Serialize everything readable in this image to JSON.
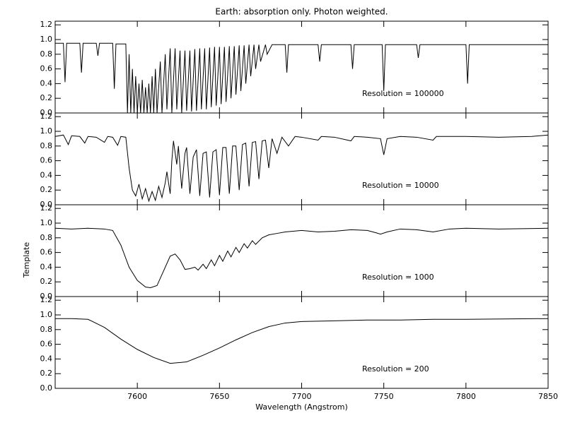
{
  "chart_data": [
    {
      "type": "line",
      "title": "Earth: absorption only. Photon weighted.",
      "annotation": "Resolution = 100000",
      "xlim": [
        7550,
        7850
      ],
      "ylim": [
        0,
        1.25
      ],
      "yticks": [
        {
          "value": 0,
          "label": "0.0"
        },
        0.2,
        0.4,
        0.6,
        0.8,
        {
          "value": 1,
          "label": "1.0"
        },
        1.2
      ],
      "series": [
        {
          "color": "#000000",
          "x": [
            7550,
            7555,
            7556,
            7557,
            7565,
            7566,
            7567,
            7575,
            7576,
            7577,
            7585,
            7586,
            7587,
            7593,
            7594,
            7595,
            7596,
            7597,
            7598,
            7599,
            7600,
            7601,
            7602,
            7603,
            7604,
            7605,
            7606,
            7607,
            7608,
            7609,
            7610,
            7611,
            7612,
            7614,
            7615,
            7617,
            7618,
            7620,
            7621,
            7623,
            7624,
            7626,
            7627,
            7629,
            7630,
            7632,
            7633,
            7635,
            7636,
            7638,
            7639,
            7641,
            7642,
            7644,
            7645,
            7647,
            7648,
            7650,
            7651,
            7653,
            7654,
            7656,
            7657,
            7659,
            7660,
            7662,
            7663,
            7665,
            7666,
            7668,
            7669,
            7671,
            7672,
            7674,
            7675,
            7678,
            7679,
            7682,
            7690,
            7691,
            7692,
            7710,
            7711,
            7712,
            7730,
            7731,
            7732,
            7749,
            7750,
            7751,
            7770,
            7771,
            7772,
            7800,
            7801,
            7802,
            7850
          ],
          "values": [
            0.95,
            0.95,
            0.42,
            0.95,
            0.95,
            0.55,
            0.95,
            0.95,
            0.78,
            0.95,
            0.95,
            0.33,
            0.94,
            0.94,
            0.0,
            0.8,
            0.0,
            0.6,
            0.0,
            0.5,
            0.0,
            0.4,
            0.0,
            0.45,
            0.0,
            0.35,
            0.0,
            0.4,
            0.0,
            0.5,
            0.0,
            0.6,
            0.0,
            0.7,
            0.0,
            0.8,
            0.05,
            0.88,
            0.0,
            0.88,
            0.05,
            0.85,
            0.0,
            0.85,
            0.03,
            0.85,
            0.02,
            0.87,
            0.03,
            0.88,
            0.05,
            0.88,
            0.05,
            0.89,
            0.08,
            0.9,
            0.1,
            0.9,
            0.12,
            0.9,
            0.15,
            0.91,
            0.2,
            0.91,
            0.25,
            0.92,
            0.3,
            0.92,
            0.4,
            0.93,
            0.5,
            0.93,
            0.6,
            0.93,
            0.7,
            0.93,
            0.8,
            0.93,
            0.93,
            0.55,
            0.93,
            0.93,
            0.7,
            0.93,
            0.93,
            0.6,
            0.93,
            0.93,
            0.3,
            0.93,
            0.93,
            0.75,
            0.93,
            0.93,
            0.4,
            0.93,
            0.93
          ]
        }
      ]
    },
    {
      "type": "line",
      "annotation": "Resolution = 10000",
      "xlim": [
        7550,
        7850
      ],
      "ylim": [
        0,
        1.25
      ],
      "yticks": [
        {
          "value": 0,
          "label": "0.0"
        },
        0.2,
        0.4,
        0.6,
        0.8,
        {
          "value": 1,
          "label": "1.0"
        },
        1.2
      ],
      "series": [
        {
          "color": "#000000",
          "x": [
            7550,
            7555,
            7558,
            7560,
            7565,
            7568,
            7570,
            7575,
            7580,
            7582,
            7585,
            7588,
            7590,
            7593,
            7595,
            7597,
            7599,
            7601,
            7603,
            7605,
            7607,
            7609,
            7611,
            7613,
            7615,
            7617,
            7618,
            7620,
            7621,
            7622,
            7624,
            7625,
            7627,
            7629,
            7630,
            7632,
            7634,
            7636,
            7638,
            7640,
            7642,
            7644,
            7646,
            7648,
            7650,
            7652,
            7654,
            7656,
            7658,
            7660,
            7662,
            7664,
            7666,
            7668,
            7670,
            7672,
            7674,
            7676,
            7678,
            7680,
            7682,
            7685,
            7688,
            7692,
            7696,
            7700,
            7710,
            7712,
            7720,
            7730,
            7732,
            7740,
            7748,
            7750,
            7752,
            7760,
            7770,
            7780,
            7782,
            7800,
            7820,
            7840,
            7850
          ],
          "values": [
            0.93,
            0.95,
            0.82,
            0.94,
            0.93,
            0.84,
            0.93,
            0.92,
            0.85,
            0.93,
            0.92,
            0.81,
            0.93,
            0.92,
            0.5,
            0.2,
            0.12,
            0.28,
            0.08,
            0.22,
            0.05,
            0.18,
            0.06,
            0.25,
            0.1,
            0.3,
            0.45,
            0.15,
            0.6,
            0.87,
            0.55,
            0.8,
            0.22,
            0.7,
            0.78,
            0.15,
            0.65,
            0.75,
            0.12,
            0.7,
            0.72,
            0.1,
            0.72,
            0.75,
            0.13,
            0.78,
            0.78,
            0.15,
            0.8,
            0.8,
            0.2,
            0.82,
            0.84,
            0.25,
            0.85,
            0.86,
            0.35,
            0.87,
            0.88,
            0.5,
            0.9,
            0.7,
            0.92,
            0.8,
            0.93,
            0.92,
            0.88,
            0.93,
            0.92,
            0.87,
            0.93,
            0.92,
            0.9,
            0.68,
            0.9,
            0.93,
            0.92,
            0.88,
            0.93,
            0.93,
            0.92,
            0.93,
            0.95
          ]
        }
      ]
    },
    {
      "type": "line",
      "annotation": "Resolution = 1000",
      "ylabel": "Template",
      "xlim": [
        7550,
        7850
      ],
      "ylim": [
        0,
        1.25
      ],
      "yticks": [
        {
          "value": 0,
          "label": "0.0"
        },
        0.2,
        0.4,
        0.6,
        0.8,
        {
          "value": 1,
          "label": "1.0"
        },
        1.2
      ],
      "series": [
        {
          "color": "#000000",
          "x": [
            7550,
            7560,
            7570,
            7580,
            7585,
            7590,
            7595,
            7600,
            7605,
            7608,
            7612,
            7616,
            7620,
            7623,
            7626,
            7629,
            7632,
            7635,
            7637,
            7640,
            7642,
            7645,
            7647,
            7650,
            7652,
            7655,
            7657,
            7660,
            7662,
            7665,
            7667,
            7670,
            7672,
            7676,
            7680,
            7685,
            7690,
            7700,
            7710,
            7720,
            7730,
            7740,
            7745,
            7748,
            7752,
            7760,
            7770,
            7780,
            7790,
            7800,
            7820,
            7850
          ],
          "values": [
            0.93,
            0.92,
            0.93,
            0.92,
            0.9,
            0.7,
            0.4,
            0.22,
            0.13,
            0.12,
            0.15,
            0.35,
            0.55,
            0.58,
            0.5,
            0.37,
            0.38,
            0.4,
            0.36,
            0.44,
            0.38,
            0.5,
            0.42,
            0.56,
            0.48,
            0.62,
            0.54,
            0.67,
            0.6,
            0.72,
            0.66,
            0.76,
            0.71,
            0.8,
            0.84,
            0.86,
            0.88,
            0.9,
            0.88,
            0.89,
            0.91,
            0.9,
            0.87,
            0.85,
            0.88,
            0.92,
            0.91,
            0.88,
            0.92,
            0.93,
            0.92,
            0.93
          ]
        }
      ]
    },
    {
      "type": "line",
      "annotation": "Resolution = 200",
      "xlabel": "Wavelength (Angstrom)",
      "xlim": [
        7550,
        7850
      ],
      "ylim": [
        0,
        1.25
      ],
      "xticks": [
        7600,
        7650,
        7700,
        7750,
        7800,
        7850
      ],
      "yticks": [
        {
          "value": 0,
          "label": "0.0"
        },
        0.2,
        0.4,
        0.6,
        0.8,
        {
          "value": 1,
          "label": "1.0"
        },
        1.2
      ],
      "series": [
        {
          "color": "#000000",
          "x": [
            7550,
            7560,
            7570,
            7580,
            7590,
            7600,
            7610,
            7620,
            7630,
            7640,
            7650,
            7660,
            7670,
            7680,
            7690,
            7700,
            7720,
            7740,
            7760,
            7780,
            7800,
            7850
          ],
          "values": [
            0.95,
            0.95,
            0.94,
            0.83,
            0.67,
            0.53,
            0.42,
            0.34,
            0.36,
            0.45,
            0.55,
            0.66,
            0.76,
            0.84,
            0.89,
            0.91,
            0.92,
            0.93,
            0.93,
            0.94,
            0.94,
            0.95
          ]
        }
      ]
    }
  ]
}
